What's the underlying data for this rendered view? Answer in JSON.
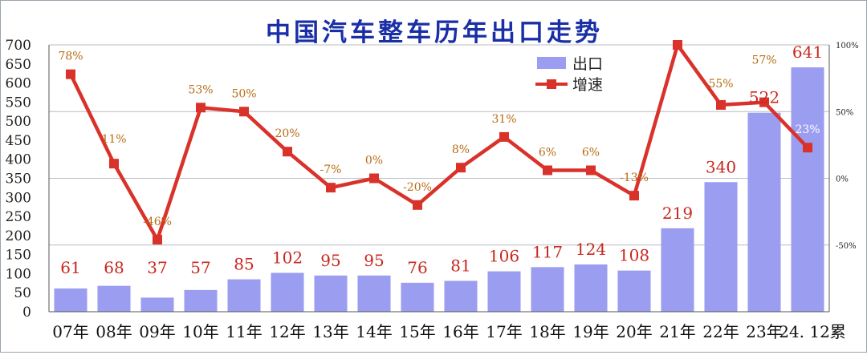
{
  "chart_data": {
    "type": "bar",
    "title": "中国汽车整车历年出口走势",
    "categories": [
      "07年",
      "08年",
      "09年",
      "10年",
      "11年",
      "12年",
      "13年",
      "14年",
      "15年",
      "16年",
      "17年",
      "18年",
      "19年",
      "20年",
      "21年",
      "22年",
      "23年",
      "24. 12累"
    ],
    "series": [
      {
        "name": "出口",
        "type": "bar",
        "axis": "left",
        "values": [
          61,
          68,
          37,
          57,
          85,
          102,
          95,
          95,
          76,
          81,
          106,
          117,
          124,
          108,
          219,
          340,
          522,
          641
        ],
        "labels": [
          "61",
          "68",
          "37",
          "57",
          "85",
          "102",
          "95",
          "95",
          "76",
          "81",
          "106",
          "117",
          "124",
          "108",
          "219",
          "340",
          "522",
          "641"
        ]
      },
      {
        "name": "增速",
        "type": "line",
        "axis": "right",
        "values": [
          78,
          11,
          -46,
          53,
          50,
          20,
          -7,
          0,
          -20,
          8,
          31,
          6,
          6,
          -13,
          100,
          55,
          57,
          23
        ],
        "labels": [
          "78%",
          "11%",
          "-46%",
          "53%",
          "50%",
          "20%",
          "-7%",
          "0%",
          "-20%",
          "8%",
          "31%",
          "6%",
          "6%",
          "-13%",
          "",
          "55%",
          "57%",
          "23%"
        ]
      }
    ],
    "y_left": {
      "min": 0,
      "max": 700,
      "ticks": [
        "0",
        "50",
        "100",
        "150",
        "200",
        "250",
        "300",
        "350",
        "400",
        "450",
        "500",
        "550",
        "600",
        "650",
        "700"
      ]
    },
    "y_right": {
      "min": -100,
      "max": 100,
      "ticks": [
        "100%",
        "50%",
        "0%",
        "-50%"
      ]
    },
    "legend": {
      "position": "top-right",
      "items": [
        "出口",
        "增速"
      ]
    },
    "grid": true,
    "colors": {
      "bar": "#9b9ef0",
      "line": "#d9322a",
      "bar_label": "#c8281e",
      "pct_label": "#b86b12",
      "title": "#1a2fa6",
      "grid": "#b9bcc2"
    }
  }
}
